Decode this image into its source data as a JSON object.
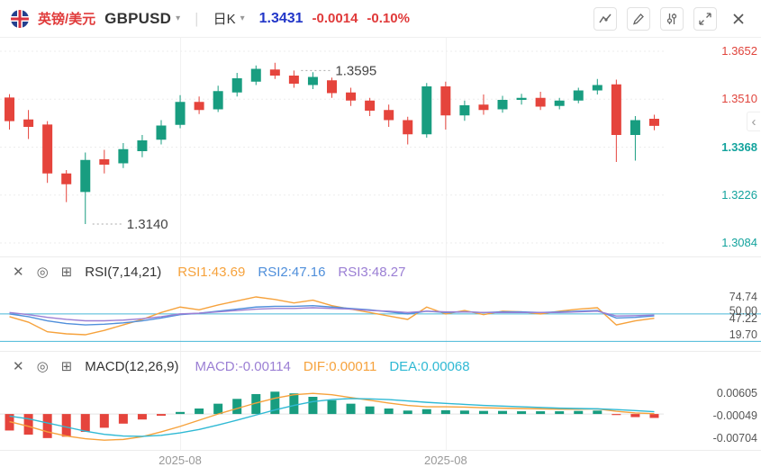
{
  "icons": {
    "caret_down": "▾",
    "divider": "|",
    "collapse_left": "‹",
    "panel_close": "✕",
    "panel_target": "◎",
    "panel_add": "⊞"
  },
  "header": {
    "pair_cn": "英镑/美元",
    "symbol": "GBPUSD",
    "period": "日K",
    "price": "1.3431",
    "change": "-0.0014",
    "change_pct": "-0.10%"
  },
  "colors": {
    "up": "#189d80",
    "down": "#e5443c",
    "header_red": "#e03a3a",
    "price_blue": "#2236c8",
    "axis_above": "#e0443c",
    "axis_current": "#13a39d",
    "axis_below": "#13a39d",
    "rsi1": "#f6a23c",
    "rsi2": "#4f8fdb",
    "rsi3": "#9b7fd4",
    "dif": "#f6a23c",
    "dea": "#2fb9d4",
    "macd_label": "#9b7fd4",
    "level_line": "#49b8d8",
    "grid": "#ededed",
    "axis_text": "#555555"
  },
  "rsi_panel": {
    "title": "RSI(7,14,21)",
    "legend": [
      {
        "label": "RSI1:43.69"
      },
      {
        "label": "RSI2:47.16"
      },
      {
        "label": "RSI3:48.27"
      }
    ]
  },
  "macd_panel": {
    "title": "MACD(12,26,9)",
    "legend": [
      {
        "label": "MACD:-0.00114"
      },
      {
        "label": "DIF:0.00011"
      },
      {
        "label": "DEA:0.00068"
      }
    ]
  },
  "chart_data": {
    "type": "candlestick+indicators",
    "title": "GBPUSD 日K",
    "main": {
      "type": "candlestick",
      "y_range": [
        1.3084,
        1.3652
      ],
      "y_ticks": [
        {
          "label": "1.3652",
          "zone": "above"
        },
        {
          "label": "1.3510",
          "zone": "above"
        },
        {
          "label": "1.3368",
          "zone": "current"
        },
        {
          "label": "1.3226",
          "zone": "below"
        },
        {
          "label": "1.3084",
          "zone": "below"
        }
      ],
      "x_ticks": [
        {
          "index": 9,
          "label": "2025-08"
        },
        {
          "index": 23,
          "label": "2025-08"
        }
      ],
      "annotations": [
        {
          "index": 15,
          "price": 1.3595,
          "text": "1.3595"
        },
        {
          "index": 4,
          "price": 1.314,
          "text": "1.3140"
        }
      ],
      "ohlc": [
        [
          1.3515,
          1.3525,
          1.342,
          1.3445
        ],
        [
          1.345,
          1.3478,
          1.3392,
          1.3428
        ],
        [
          1.3435,
          1.3445,
          1.3262,
          1.329
        ],
        [
          1.329,
          1.33,
          1.3205,
          1.3258
        ],
        [
          1.3235,
          1.3352,
          1.314,
          1.333
        ],
        [
          1.3332,
          1.336,
          1.329,
          1.3316
        ],
        [
          1.332,
          1.338,
          1.3306,
          1.3362
        ],
        [
          1.3356,
          1.3404,
          1.3338,
          1.3388
        ],
        [
          1.339,
          1.3448,
          1.3376,
          1.3432
        ],
        [
          1.3434,
          1.3522,
          1.3424,
          1.3502
        ],
        [
          1.3502,
          1.3518,
          1.3466,
          1.3478
        ],
        [
          1.348,
          1.355,
          1.3472,
          1.3534
        ],
        [
          1.353,
          1.3588,
          1.3518,
          1.3572
        ],
        [
          1.3562,
          1.361,
          1.3552,
          1.36
        ],
        [
          1.3598,
          1.3618,
          1.357,
          1.358
        ],
        [
          1.358,
          1.3595,
          1.3544,
          1.3556
        ],
        [
          1.3552,
          1.359,
          1.354,
          1.3576
        ],
        [
          1.3566,
          1.3574,
          1.3514,
          1.3528
        ],
        [
          1.353,
          1.3544,
          1.349,
          1.3506
        ],
        [
          1.3506,
          1.3514,
          1.346,
          1.3476
        ],
        [
          1.3478,
          1.3494,
          1.3428,
          1.3448
        ],
        [
          1.3448,
          1.3458,
          1.3376,
          1.3406
        ],
        [
          1.3406,
          1.3558,
          1.3396,
          1.3548
        ],
        [
          1.3548,
          1.3562,
          1.342,
          1.3462
        ],
        [
          1.3462,
          1.3506,
          1.3446,
          1.3492
        ],
        [
          1.3494,
          1.3524,
          1.3464,
          1.3478
        ],
        [
          1.348,
          1.352,
          1.347,
          1.3508
        ],
        [
          1.3508,
          1.3526,
          1.3494,
          1.3514
        ],
        [
          1.3514,
          1.3532,
          1.3478,
          1.3488
        ],
        [
          1.349,
          1.3514,
          1.348,
          1.3506
        ],
        [
          1.3506,
          1.3544,
          1.3498,
          1.3536
        ],
        [
          1.3536,
          1.357,
          1.3524,
          1.3552
        ],
        [
          1.3554,
          1.3568,
          1.3324,
          1.3404
        ],
        [
          1.3404,
          1.346,
          1.3328,
          1.3448
        ],
        [
          1.3452,
          1.3464,
          1.3418,
          1.3431
        ]
      ]
    },
    "rsi": {
      "type": "line",
      "params": "7,14,21",
      "levels": [
        50,
        10
      ],
      "scale": {
        "top_value": 74.74,
        "top_y": 45,
        "bottom_value": 19.7,
        "bottom_y": 87
      },
      "y_labels": [
        {
          "label": "74.74",
          "value": 74.74
        },
        {
          "label": "50.00",
          "value": 54.5
        },
        {
          "label": "47.22",
          "value": 43.5
        },
        {
          "label": "19.70",
          "value": 19.7
        }
      ],
      "series": [
        {
          "name": "RSI1",
          "color_key": "rsi1",
          "values": [
            46,
            38,
            24,
            21,
            19.7,
            26,
            34,
            42,
            52,
            60,
            56,
            63,
            69,
            74.74,
            71,
            66,
            70,
            62,
            57,
            52,
            47,
            42,
            60,
            50,
            55,
            49,
            54,
            53,
            50,
            54,
            57,
            59,
            34,
            40,
            43.69
          ]
        },
        {
          "name": "RSI2",
          "color_key": "rsi2",
          "values": [
            50,
            46,
            40,
            36,
            34,
            35,
            37,
            40,
            44,
            49,
            51,
            54,
            57,
            60,
            61,
            61,
            62,
            60,
            58,
            56,
            53,
            50,
            54,
            52,
            53,
            52,
            53,
            53,
            52,
            53,
            54,
            55,
            44,
            45,
            47.16
          ]
        },
        {
          "name": "RSI3",
          "color_key": "rsi3",
          "values": [
            52,
            49,
            45,
            42,
            40,
            40,
            41,
            43,
            46,
            50,
            51,
            53,
            55,
            57,
            58,
            58,
            59,
            58,
            57,
            55,
            54,
            52,
            54,
            53,
            53,
            52,
            52,
            52,
            52,
            52,
            53,
            54,
            47,
            47.5,
            48.27
          ]
        }
      ]
    },
    "macd": {
      "type": "bar+line",
      "params": "12,26,9",
      "scale": {
        "top_value": 0.00605,
        "top_y": 47,
        "bottom_value": -0.00704,
        "bottom_y": 97
      },
      "y_labels": [
        {
          "label": "0.00605",
          "value": 0.00605
        },
        {
          "label": "-0.00049",
          "value": -0.00049
        },
        {
          "label": "-0.00704",
          "value": -0.00704
        }
      ],
      "histogram": [
        -0.0048,
        -0.006,
        -0.007,
        -0.0066,
        -0.0052,
        -0.004,
        -0.0028,
        -0.0016,
        -0.0005,
        0.0006,
        0.0016,
        0.003,
        0.0044,
        0.0058,
        0.0065,
        0.006,
        0.005,
        0.004,
        0.003,
        0.0022,
        0.0016,
        0.001,
        0.0014,
        0.0011,
        0.001,
        0.0009,
        0.0009,
        0.0008,
        0.0008,
        0.0008,
        0.0009,
        0.001,
        -0.0003,
        -0.0009,
        -0.00114
      ],
      "dif": [
        -0.0022,
        -0.0036,
        -0.0052,
        -0.0064,
        -0.0072,
        -0.0076,
        -0.0074,
        -0.0066,
        -0.0052,
        -0.0036,
        -0.0018,
        0,
        0.0016,
        0.0032,
        0.0046,
        0.0056,
        0.006,
        0.0056,
        0.0048,
        0.004,
        0.0032,
        0.0025,
        0.0021,
        0.0021,
        0.002,
        0.0018,
        0.0017,
        0.0016,
        0.0015,
        0.0014,
        0.0014,
        0.0015,
        0.0008,
        0.0003,
        0.00011
      ],
      "dea": [
        -0.0006,
        -0.0014,
        -0.0026,
        -0.0038,
        -0.005,
        -0.0059,
        -0.0064,
        -0.0065,
        -0.0062,
        -0.0055,
        -0.0045,
        -0.0032,
        -0.0018,
        -0.0003,
        0.0012,
        0.0025,
        0.0036,
        0.0042,
        0.0045,
        0.0044,
        0.0042,
        0.0038,
        0.0034,
        0.0031,
        0.0028,
        0.0025,
        0.0023,
        0.0021,
        0.0019,
        0.0017,
        0.0016,
        0.0015,
        0.0013,
        0.001,
        0.00068
      ]
    }
  }
}
